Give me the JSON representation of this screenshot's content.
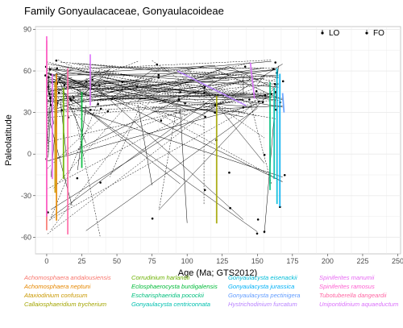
{
  "chart_data": {
    "type": "line",
    "title": "Family Gonyaulacaceae, Gonyaulacoideae",
    "xlabel": "Age (Ma; GTS2012)",
    "ylabel": "Paleolatitude",
    "xlim": [
      -8,
      252
    ],
    "ylim": [
      -72,
      92
    ],
    "xticks": [
      "0",
      "25",
      "50",
      "75",
      "100",
      "125",
      "150",
      "175",
      "200",
      "225",
      "250"
    ],
    "yticks": [
      "-60",
      "-30",
      "0",
      "30",
      "60",
      "90"
    ],
    "xtick_values": [
      0,
      25,
      50,
      75,
      100,
      125,
      150,
      175,
      200,
      225,
      250
    ],
    "ytick_values": [
      -60,
      -30,
      0,
      30,
      60,
      90
    ],
    "grid": true,
    "legend_position": "top-right",
    "legend": [
      "LO",
      "FO"
    ],
    "series": [
      {
        "name": "Achomosphaera andalousiensis",
        "color": "#F8766D",
        "segments": [
          [
            [
              0,
              82
            ],
            [
              0,
              -55
            ]
          ]
        ]
      },
      {
        "name": "Achomosphaera neptuni",
        "color": "#E58700",
        "segments": [
          [
            [
              7,
              58
            ],
            [
              7,
              -48
            ]
          ]
        ]
      },
      {
        "name": "Ataxiodinium confusum",
        "color": "#C99800",
        "segments": [
          [
            [
              6,
              52
            ],
            [
              6,
              -28
            ]
          ]
        ]
      },
      {
        "name": "Callaiosphaeridium trycherium",
        "color": "#A3A500",
        "segments": [
          [
            [
              121,
              42
            ],
            [
              121,
              -50
            ]
          ]
        ]
      },
      {
        "name": "Corrudinium harlandii",
        "color": "#6BB100",
        "segments": [
          [
            [
              12,
              48
            ],
            [
              12,
              -18
            ]
          ]
        ]
      },
      {
        "name": "Eclosphaerocysta burdigalensis",
        "color": "#00BA38",
        "segments": [
          [
            [
              25,
              45
            ],
            [
              25,
              -10
            ]
          ]
        ]
      },
      {
        "name": "Escharisphaeridia pocockii",
        "color": "#00BF7D",
        "segments": [
          [
            [
              159,
              52
            ],
            [
              159,
              -26
            ]
          ]
        ]
      },
      {
        "name": "Gonyaulacysta centriconnata",
        "color": "#00C0AF",
        "segments": [
          [
            [
              162,
              48
            ],
            [
              162,
              -18
            ]
          ]
        ]
      },
      {
        "name": "Gonyaulacysta eisenackii",
        "color": "#00BCD8",
        "segments": [
          [
            [
              164,
              62
            ],
            [
              164,
              -36
            ]
          ]
        ]
      },
      {
        "name": "Gonyaulacysta jurassica",
        "color": "#00B0F6",
        "segments": [
          [
            [
              166,
              58
            ],
            [
              166,
              -38
            ]
          ]
        ]
      },
      {
        "name": "Gonyaulacysta pectinigera",
        "color": "#619CFF",
        "segments": [
          [
            [
              168,
              44
            ],
            [
              169,
              30
            ]
          ]
        ]
      },
      {
        "name": "Hystrichodinium furcatum",
        "color": "#B983FF",
        "segments": [
          [
            [
              93,
              60
            ],
            [
              142,
              35
            ]
          ]
        ]
      },
      {
        "name": "Spiniferites manumii",
        "color": "#E76BF3",
        "segments": [
          [
            [
              4,
              58
            ],
            [
              4,
              -18
            ]
          ]
        ]
      },
      {
        "name": "Spiniferites ramosus",
        "color": "#FD61D1",
        "segments": [
          [
            [
              0,
              85
            ],
            [
              0,
              -45
            ]
          ]
        ]
      },
      {
        "name": "Tubotuberella dangeardii",
        "color": "#FF67A4",
        "segments": [
          [
            [
              15,
              62
            ],
            [
              15,
              -58
            ]
          ]
        ]
      },
      {
        "name": "Unipontidinium aquaeductum",
        "color": "#DB72FB",
        "segments": [
          [
            [
              31,
              72
            ],
            [
              31,
              35
            ]
          ],
          [
            [
              145,
              66
            ],
            [
              148,
              40
            ]
          ]
        ]
      }
    ]
  }
}
